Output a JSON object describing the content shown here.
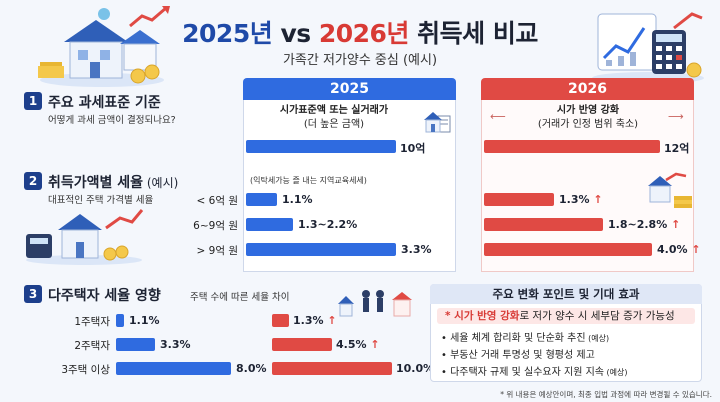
{
  "title": {
    "year_a": "2025년",
    "vs": " vs ",
    "year_b": "2026년",
    "rest": " 취득세 비교"
  },
  "subtitle": "가족간 저가양수 중심 (예시)",
  "columns": {
    "a": "2025",
    "b": "2026"
  },
  "section1": {
    "num": "1",
    "title": "주요 과세표준 기준",
    "sub": "어떻게 과세 금액이 결정되나요?",
    "a_label_1": "시가표준액 또는 실거래가",
    "a_label_2": "(더 높은 금액)",
    "a_value": "10억",
    "a_fraction": 0.73,
    "b_label_1": "시가 반영 강화",
    "b_label_2": "(거래가 인정 범위 축소)",
    "b_value": "12억",
    "b_fraction": 0.86
  },
  "section2": {
    "num": "2",
    "title": "취득가액별 세율",
    "title_suffix": " (예시)",
    "sub": "대표적인 주택 가격별 세율",
    "note": "(익탁세가능 즐 내는 지역교육세세)",
    "rows": [
      {
        "label": "< 6억 원",
        "a_value": "1.1%",
        "a_fraction": 0.15,
        "b_value": "1.3%",
        "b_fraction": 0.34
      },
      {
        "label": "6~9억 원",
        "a_value": "1.3~2.2%",
        "a_fraction": 0.23,
        "b_value": "1.8~2.8%",
        "b_fraction": 0.58
      },
      {
        "label": "> 9억 원",
        "a_value": "3.3%",
        "a_fraction": 0.73,
        "b_value": "4.0%",
        "b_fraction": 0.82
      }
    ]
  },
  "section3": {
    "num": "3",
    "title": "다주택자 세율 영향",
    "sub": "주택 수에 따른 세율 차이",
    "rows": [
      {
        "label": "1주택자",
        "a_value": "1.1%",
        "a_fraction": 0.06,
        "b_value": "1.3%",
        "b_fraction": 0.12
      },
      {
        "label": "2주택자",
        "a_value": "3.3%",
        "a_fraction": 0.28,
        "b_value": "4.5%",
        "b_fraction": 0.43
      },
      {
        "label": "3주택 이상",
        "a_value": "8.0%",
        "a_fraction": 0.82,
        "b_value": "10.0%",
        "b_fraction": 0.86
      }
    ]
  },
  "effects": {
    "title": "주요 변화 포인트 및 기대 효과",
    "highlight_star": "* ",
    "highlight_red": "시가 반영 강화",
    "highlight_rest": "로 저가 양수 시 세부담 증가 가능성",
    "items": [
      {
        "text": "세율 체계 합리화 및 단순화 추진",
        "small": " (예상)"
      },
      {
        "text": "부동산 거래 투명성 및 형평성 제고",
        "small": ""
      },
      {
        "text": "다주택자 규제 및 실수요자 지원 지속",
        "small": " (예상)"
      }
    ]
  },
  "footnote": "* 위 내용은 예상안이며, 최종 입법 과정에 따라 변경될 수 있습니다.",
  "colors": {
    "blue": "#2f6be0",
    "red": "#e04a44",
    "navy": "#1d3f8c"
  }
}
